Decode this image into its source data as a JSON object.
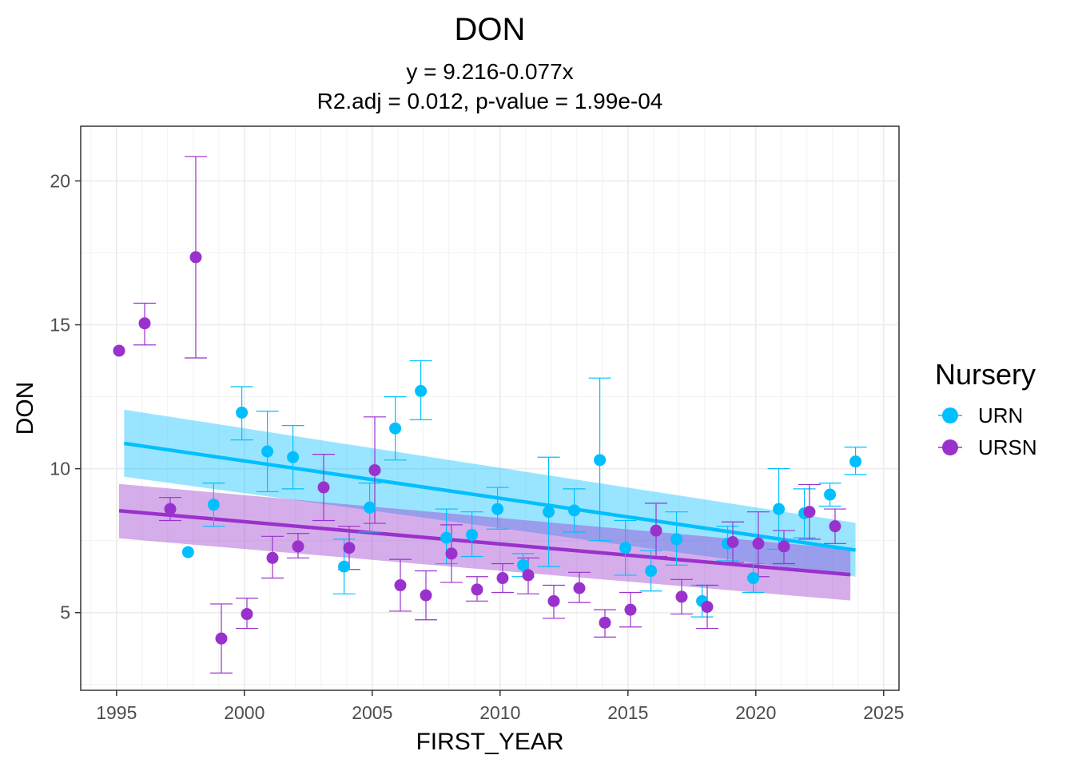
{
  "chart_data": {
    "type": "scatter",
    "title": "DON",
    "subtitle_line1": "y = 9.216-0.077x",
    "subtitle_line2": "R2.adj = 0.012, p-value = 1.99e-04",
    "xlabel": "FIRST_YEAR",
    "ylabel": "DON",
    "xlim": [
      1993.6,
      2025.6
    ],
    "ylim": [
      2.3,
      21.9
    ],
    "xticks": [
      1995,
      2000,
      2005,
      2010,
      2015,
      2020,
      2025
    ],
    "yticks": [
      5,
      10,
      15,
      20
    ],
    "grid": true,
    "legend": {
      "title": "Nursery",
      "placement": "right",
      "entries": [
        "URN",
        "URSN"
      ]
    },
    "series": [
      {
        "name": "URN",
        "color": "#00bfff",
        "fit": {
          "x": [
            1995.3,
            2023.9
          ],
          "y": [
            10.88,
            7.17
          ],
          "ci_low": [
            9.72,
            6.25
          ],
          "ci_high": [
            12.05,
            8.12
          ]
        },
        "points": [
          {
            "x": 1997.8,
            "y": 7.1
          },
          {
            "x": 1998.8,
            "y": 8.75,
            "lo": 8.0,
            "hi": 9.5
          },
          {
            "x": 1999.9,
            "y": 11.95,
            "lo": 11.0,
            "hi": 12.85
          },
          {
            "x": 2000.9,
            "y": 10.6,
            "lo": 9.2,
            "hi": 12.0
          },
          {
            "x": 2001.9,
            "y": 10.4,
            "lo": 9.3,
            "hi": 11.5
          },
          {
            "x": 2003.9,
            "y": 6.6,
            "lo": 5.65,
            "hi": 7.55
          },
          {
            "x": 2004.9,
            "y": 8.65,
            "lo": 7.8,
            "hi": 9.5
          },
          {
            "x": 2005.9,
            "y": 11.4,
            "lo": 10.3,
            "hi": 12.5
          },
          {
            "x": 2006.9,
            "y": 12.7,
            "lo": 11.7,
            "hi": 13.75
          },
          {
            "x": 2007.9,
            "y": 7.6,
            "lo": 6.7,
            "hi": 8.6
          },
          {
            "x": 2008.9,
            "y": 7.7,
            "lo": 6.95,
            "hi": 8.5
          },
          {
            "x": 2009.9,
            "y": 8.6,
            "lo": 7.9,
            "hi": 9.35
          },
          {
            "x": 2010.9,
            "y": 6.65,
            "lo": 6.25,
            "hi": 7.05
          },
          {
            "x": 2011.9,
            "y": 8.5,
            "lo": 6.6,
            "hi": 10.4
          },
          {
            "x": 2012.9,
            "y": 8.55,
            "lo": 7.8,
            "hi": 9.3
          },
          {
            "x": 2013.9,
            "y": 10.3,
            "lo": 7.5,
            "hi": 13.15
          },
          {
            "x": 2014.9,
            "y": 7.25,
            "lo": 6.3,
            "hi": 8.2
          },
          {
            "x": 2015.9,
            "y": 6.45,
            "lo": 5.75,
            "hi": 7.15
          },
          {
            "x": 2016.9,
            "y": 7.55,
            "lo": 6.65,
            "hi": 8.5
          },
          {
            "x": 2017.9,
            "y": 5.4,
            "lo": 4.85,
            "hi": 5.95
          },
          {
            "x": 2018.9,
            "y": 7.4,
            "lo": 6.8,
            "hi": 8.0
          },
          {
            "x": 2019.9,
            "y": 6.2,
            "lo": 5.7,
            "hi": 6.7
          },
          {
            "x": 2020.9,
            "y": 8.6,
            "lo": 7.2,
            "hi": 10.0
          },
          {
            "x": 2021.9,
            "y": 8.45,
            "lo": 7.6,
            "hi": 9.3
          },
          {
            "x": 2022.9,
            "y": 9.1,
            "lo": 8.7,
            "hi": 9.5
          },
          {
            "x": 2023.9,
            "y": 10.25,
            "lo": 9.8,
            "hi": 10.75
          }
        ]
      },
      {
        "name": "URSN",
        "color": "#9932cc",
        "fit": {
          "x": [
            1995.1,
            2023.7
          ],
          "y": [
            8.54,
            6.32
          ],
          "ci_low": [
            7.58,
            5.42
          ],
          "ci_high": [
            9.47,
            7.2
          ]
        },
        "points": [
          {
            "x": 1995.1,
            "y": 14.1
          },
          {
            "x": 1996.1,
            "y": 15.05,
            "lo": 14.3,
            "hi": 15.75
          },
          {
            "x": 1997.1,
            "y": 8.6,
            "lo": 8.2,
            "hi": 9.0
          },
          {
            "x": 1998.1,
            "y": 17.35,
            "lo": 13.85,
            "hi": 20.85
          },
          {
            "x": 1999.1,
            "y": 4.1,
            "lo": 2.9,
            "hi": 5.3
          },
          {
            "x": 2000.1,
            "y": 4.95,
            "lo": 4.45,
            "hi": 5.5
          },
          {
            "x": 2001.1,
            "y": 6.9,
            "lo": 6.2,
            "hi": 7.65
          },
          {
            "x": 2002.1,
            "y": 7.3,
            "lo": 6.9,
            "hi": 7.75
          },
          {
            "x": 2003.1,
            "y": 9.35,
            "lo": 8.2,
            "hi": 10.5
          },
          {
            "x": 2004.1,
            "y": 7.25,
            "lo": 6.5,
            "hi": 8.0
          },
          {
            "x": 2005.1,
            "y": 9.95,
            "lo": 8.1,
            "hi": 11.8
          },
          {
            "x": 2006.1,
            "y": 5.95,
            "lo": 5.05,
            "hi": 6.85
          },
          {
            "x": 2007.1,
            "y": 5.6,
            "lo": 4.75,
            "hi": 6.45
          },
          {
            "x": 2008.1,
            "y": 7.05,
            "lo": 6.05,
            "hi": 8.05
          },
          {
            "x": 2009.1,
            "y": 5.8,
            "lo": 5.4,
            "hi": 6.25
          },
          {
            "x": 2010.1,
            "y": 6.2,
            "lo": 5.7,
            "hi": 6.7
          },
          {
            "x": 2011.1,
            "y": 6.3,
            "lo": 5.65,
            "hi": 6.9
          },
          {
            "x": 2012.1,
            "y": 5.4,
            "lo": 4.8,
            "hi": 5.95
          },
          {
            "x": 2013.1,
            "y": 5.85,
            "lo": 5.35,
            "hi": 6.4
          },
          {
            "x": 2014.1,
            "y": 4.65,
            "lo": 4.15,
            "hi": 5.1
          },
          {
            "x": 2015.1,
            "y": 5.1,
            "lo": 4.5,
            "hi": 5.7
          },
          {
            "x": 2016.1,
            "y": 7.85,
            "lo": 6.95,
            "hi": 8.8
          },
          {
            "x": 2017.1,
            "y": 5.55,
            "lo": 4.95,
            "hi": 6.15
          },
          {
            "x": 2018.1,
            "y": 5.2,
            "lo": 4.45,
            "hi": 5.95
          },
          {
            "x": 2019.1,
            "y": 7.45,
            "lo": 6.75,
            "hi": 8.15
          },
          {
            "x": 2020.1,
            "y": 7.4,
            "lo": 6.25,
            "hi": 8.5
          },
          {
            "x": 2021.1,
            "y": 7.3,
            "lo": 6.7,
            "hi": 7.85
          },
          {
            "x": 2022.1,
            "y": 8.5,
            "lo": 7.55,
            "hi": 9.45
          },
          {
            "x": 2023.1,
            "y": 8.0,
            "lo": 7.4,
            "hi": 8.6
          }
        ]
      }
    ]
  }
}
